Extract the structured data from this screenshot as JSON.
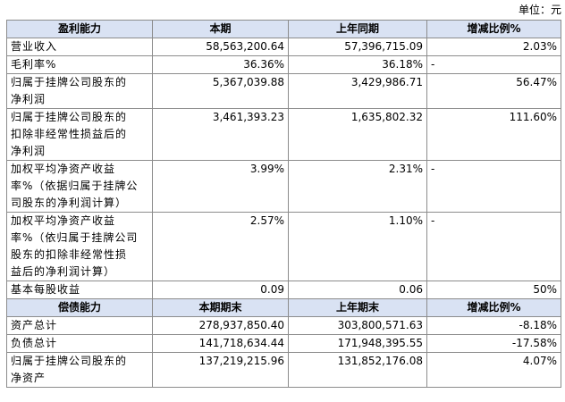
{
  "unit_label": "单位：元",
  "profit": {
    "header": [
      "盈利能力",
      "本期",
      "上年同期",
      "增减比例%"
    ],
    "rows": [
      {
        "label": [
          "营业收入"
        ],
        "current": "58,563,200.64",
        "previous": "57,396,715.09",
        "change": "2.03%"
      },
      {
        "label": [
          "毛利率%"
        ],
        "current": "36.36%",
        "previous": "36.18%",
        "change": "-"
      },
      {
        "label": [
          "归属于挂牌公司股东的",
          "净利润"
        ],
        "current": "5,367,039.88",
        "previous": "3,429,986.71",
        "change": "56.47%"
      },
      {
        "label": [
          "归属于挂牌公司股东的",
          "扣除非经常性损益后的",
          "净利润"
        ],
        "current": "3,461,393.23",
        "previous": "1,635,802.32",
        "change": "111.60%"
      },
      {
        "label": [
          "加权平均净资产收益",
          "率%（依据归属于挂牌公",
          "司股东的净利润计算）"
        ],
        "current": "3.99%",
        "previous": "2.31%",
        "change": "-"
      },
      {
        "label": [
          "加权平均净资产收益",
          "率%（依归属于挂牌公司",
          "股东的扣除非经常性损",
          "益后的净利润计算）"
        ],
        "current": "2.57%",
        "previous": "1.10%",
        "change": "-"
      },
      {
        "label": [
          "基本每股收益"
        ],
        "current": "0.09",
        "previous": "0.06",
        "change": "50%"
      }
    ]
  },
  "solvency": {
    "header": [
      "偿债能力",
      "本期期末",
      "上年期末",
      "增减比例%"
    ],
    "rows": [
      {
        "label": [
          "资产总计"
        ],
        "current": "278,937,850.40",
        "previous": "303,800,571.63",
        "change": "-8.18%"
      },
      {
        "label": [
          "负债总计"
        ],
        "current": "141,718,634.44",
        "previous": "171,948,395.55",
        "change": "-17.58%"
      },
      {
        "label": [
          "归属于挂牌公司股东的",
          "净资产"
        ],
        "current": "137,219,215.96",
        "previous": "131,852,176.08",
        "change": "4.07%"
      }
    ]
  }
}
